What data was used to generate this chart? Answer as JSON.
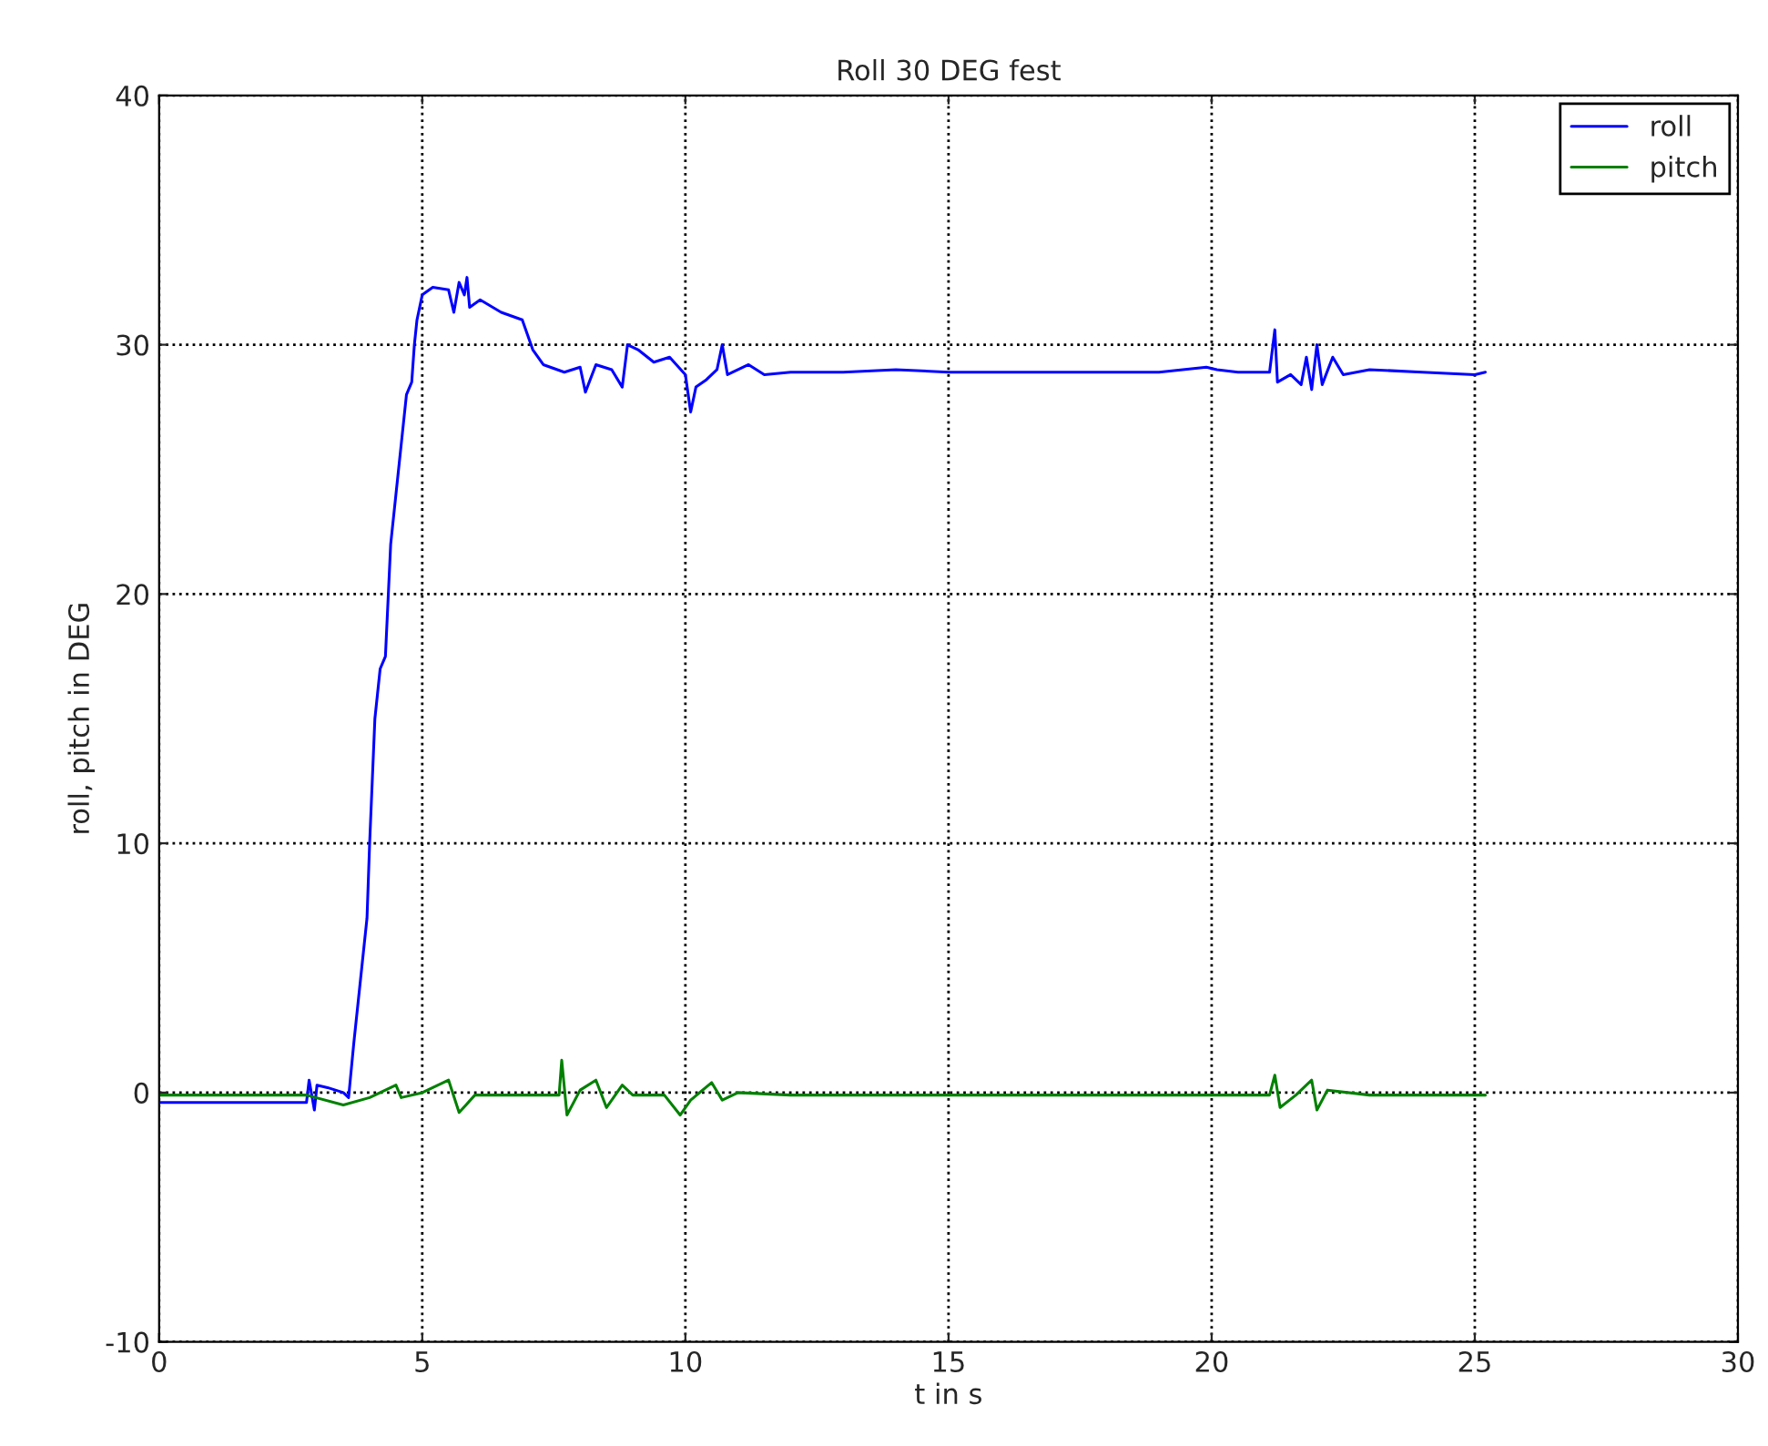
{
  "chart_data": {
    "type": "line",
    "title": "Roll 30 DEG fest",
    "xlabel": "t in s",
    "ylabel": "roll, pitch in DEG",
    "xlim": [
      0,
      30
    ],
    "xticks": [
      0,
      5,
      10,
      15,
      20,
      25,
      30
    ],
    "ylim": [
      -10,
      40
    ],
    "yticks": [
      -10,
      0,
      10,
      20,
      30,
      40
    ],
    "grid": true,
    "legend": "top right",
    "line_style": "solid",
    "series": [
      {
        "name": "roll",
        "color": "#0000ff",
        "x": [
          0,
          1,
          2,
          2.8,
          2.85,
          2.95,
          3.0,
          3.2,
          3.5,
          3.6,
          3.7,
          3.85,
          3.95,
          4.0,
          4.1,
          4.2,
          4.3,
          4.4,
          4.5,
          4.6,
          4.7,
          4.8,
          4.85,
          4.9,
          5.0,
          5.2,
          5.5,
          5.6,
          5.7,
          5.8,
          5.85,
          5.9,
          6.1,
          6.5,
          6.9,
          7.1,
          7.3,
          7.7,
          8.0,
          8.1,
          8.3,
          8.6,
          8.8,
          8.9,
          9.1,
          9.4,
          9.7,
          10.0,
          10.1,
          10.2,
          10.4,
          10.6,
          10.7,
          10.8,
          10.9,
          11.2,
          11.5,
          12,
          13,
          14,
          15,
          16,
          17,
          18,
          19,
          19.9,
          20.1,
          20.5,
          21.1,
          21.2,
          21.25,
          21.5,
          21.7,
          21.8,
          21.9,
          22.0,
          22.1,
          22.3,
          22.5,
          23,
          24,
          25,
          25.2
        ],
        "values": [
          -0.4,
          -0.4,
          -0.4,
          -0.4,
          0.5,
          -0.7,
          0.3,
          0.2,
          0.0,
          -0.2,
          2,
          5,
          7,
          10,
          15,
          17,
          17.5,
          22,
          24,
          26,
          28,
          28.5,
          30,
          31,
          32,
          32.3,
          32.2,
          31.3,
          32.5,
          32,
          32.7,
          31.5,
          31.8,
          31.3,
          31.0,
          29.8,
          29.2,
          28.9,
          29.1,
          28.1,
          29.2,
          29.0,
          28.3,
          30.0,
          29.8,
          29.3,
          29.5,
          28.8,
          27.3,
          28.3,
          28.6,
          29.0,
          30.0,
          28.8,
          28.9,
          29.2,
          28.8,
          28.9,
          28.9,
          29.0,
          28.9,
          28.9,
          28.9,
          28.9,
          28.9,
          29.1,
          29.0,
          28.9,
          28.9,
          30.6,
          28.5,
          28.8,
          28.4,
          29.5,
          28.2,
          30.0,
          28.4,
          29.5,
          28.8,
          29.0,
          28.9,
          28.8,
          28.9
        ]
      },
      {
        "name": "pitch",
        "color": "#008000",
        "x": [
          0,
          1,
          2,
          2.8,
          3.5,
          4,
          4.5,
          4.6,
          5,
          5.5,
          5.7,
          6,
          7,
          7.6,
          7.65,
          7.75,
          8,
          8.3,
          8.5,
          8.8,
          9,
          9.6,
          9.9,
          10.1,
          10.5,
          10.7,
          11,
          12,
          15,
          20,
          21.1,
          21.2,
          21.3,
          21.6,
          21.9,
          22.0,
          22.2,
          23,
          25,
          25.2
        ],
        "values": [
          -0.1,
          -0.1,
          -0.1,
          -0.1,
          -0.5,
          -0.2,
          0.3,
          -0.2,
          0.0,
          0.5,
          -0.8,
          -0.1,
          -0.1,
          -0.1,
          1.3,
          -0.9,
          0.1,
          0.5,
          -0.6,
          0.3,
          -0.1,
          -0.1,
          -0.9,
          -0.3,
          0.4,
          -0.3,
          0.0,
          -0.1,
          -0.1,
          -0.1,
          -0.1,
          0.7,
          -0.6,
          -0.1,
          0.5,
          -0.7,
          0.1,
          -0.1,
          -0.1,
          -0.1
        ]
      }
    ]
  }
}
